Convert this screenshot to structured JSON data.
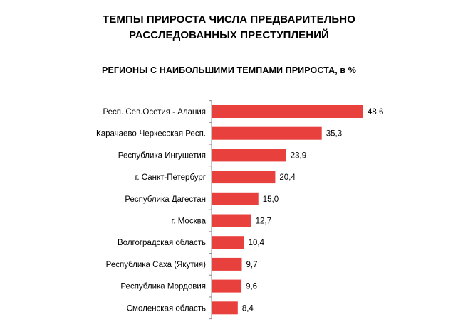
{
  "page": {
    "title_line1": "ТЕМПЫ ПРИРОСТА ЧИСЛА ПРЕДВАРИТЕЛЬНО",
    "title_line2": "РАССЛЕДОВАННЫХ ПРЕСТУПЛЕНИЙ"
  },
  "chart_data": {
    "type": "bar",
    "orientation": "horizontal",
    "title": "РЕГИОНЫ С НАИБОЛЬШИМИ ТЕМПАМИ ПРИРОСТА, в %",
    "categories": [
      "Респ. Сев.Осетия - Алания",
      "Карачаево-Черкесская Респ.",
      "Республика Ингушетия",
      "г. Санкт-Петербург",
      "Республика Дагестан",
      "г. Москва",
      "Волгоградская область",
      "Республика Саха (Якутия)",
      "Республика Мордовия",
      "Смоленская область"
    ],
    "values": [
      48.6,
      35.3,
      23.9,
      20.4,
      15.0,
      12.7,
      10.4,
      9.7,
      9.6,
      8.4
    ],
    "value_labels": [
      "48,6",
      "35,3",
      "23,9",
      "20,4",
      "15,0",
      "12,7",
      "10,4",
      "9,7",
      "9,6",
      "8,4"
    ],
    "xlim": [
      0,
      48.6
    ],
    "grid": false,
    "legend": "none",
    "bar_color": "#e8403d",
    "axis_color": "#8a8a8a"
  }
}
